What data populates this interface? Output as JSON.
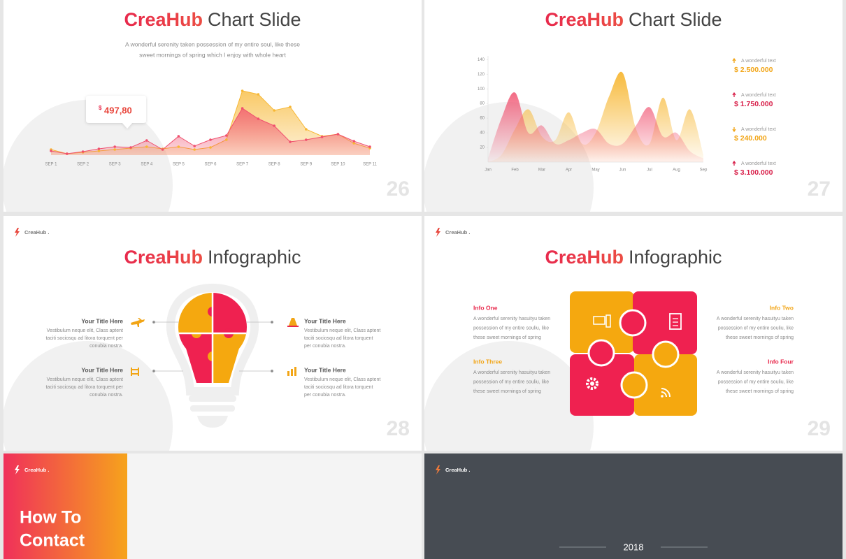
{
  "slides": [
    {
      "number": "26",
      "title": {
        "brand": "CreaHub",
        "rest": "Chart Slide"
      },
      "subtitle": [
        "A wonderful serenity  taken possession of my entire soul, like these",
        "sweet mornings of spring which I enjoy with whole heart"
      ],
      "callout": {
        "currency": "$",
        "amount": "497,80"
      },
      "chart_data": {
        "type": "line",
        "categories": [
          "SEP 1",
          null,
          "SEP 2",
          null,
          "SEP 3",
          null,
          "SEP 4",
          null,
          "SEP 5",
          null,
          "SEP 6",
          null,
          "SEP 7",
          null,
          "SEP 8",
          null,
          "SEP 9",
          null,
          "SEP 10",
          null,
          "SEP 11"
        ],
        "ylim": [
          0,
          100
        ],
        "series": [
          {
            "color": "#f7b733",
            "values": [
              8,
              2,
              4,
              6,
              8,
              10,
              12,
              9,
              12,
              8,
              11,
              22,
              92,
              87,
              64,
              69,
              37,
              27,
              30,
              17,
              10
            ]
          },
          {
            "color": "#f0506e",
            "values": [
              6,
              2,
              5,
              9,
              12,
              11,
              21,
              8,
              27,
              13,
              22,
              28,
              67,
              52,
              42,
              19,
              22,
              26,
              30,
              20,
              12
            ]
          }
        ]
      }
    },
    {
      "number": "27",
      "title": {
        "brand": "CreaHub",
        "rest": "Chart Slide"
      },
      "chart_data": {
        "type": "area",
        "categories": [
          "Jan",
          null,
          "Feb",
          null,
          "Mar",
          null,
          "Apr",
          null,
          "May",
          null,
          "Jun",
          null,
          "Jul",
          null,
          "Aug",
          null,
          "Sep"
        ],
        "ylim": [
          0,
          145
        ],
        "yticks": [
          20,
          40,
          60,
          80,
          100,
          120,
          140
        ],
        "series": [
          {
            "color": "#f7b733",
            "values": [
              0,
              10,
              45,
              72,
              35,
              30,
              68,
              25,
              40,
              90,
              122,
              45,
              25,
              88,
              30,
              72,
              10
            ]
          },
          {
            "color": "#f0506e",
            "values": [
              5,
              60,
              95,
              40,
              50,
              25,
              30,
              40,
              45,
              25,
              25,
              50,
              75,
              35,
              40,
              15,
              5
            ]
          }
        ]
      },
      "stats": [
        {
          "label": "A wonderful text",
          "amount": "$ 2.500.000",
          "trend": "up",
          "color": "#f2a516"
        },
        {
          "label": "A wonderful text",
          "amount": "$ 1.750.000",
          "trend": "up",
          "color": "#d8204a"
        },
        {
          "label": "A wonderful text",
          "amount": "$ 240.000",
          "trend": "down",
          "color": "#f2a516"
        },
        {
          "label": "A wonderful text",
          "amount": "$ 3.100.000",
          "trend": "up",
          "color": "#d8204a"
        }
      ]
    },
    {
      "number": "28",
      "logo": "CreaHub .",
      "title": {
        "brand": "CreaHub",
        "rest": "Infographic"
      },
      "items": [
        {
          "title": "Your Title Here",
          "text": [
            "Vestibulum neque elit, Class aptent",
            "taciti sociosqu ad litora torquent per",
            "conubia nostra."
          ]
        },
        {
          "title": "Your Title Here",
          "text": [
            "Vestibulum neque elit, Class aptent",
            "taciti sociosqu ad litora torquent",
            "per conubia nostra."
          ]
        },
        {
          "title": "Your Title Here",
          "text": [
            "Vestibulum neque elit, Class aptent",
            "taciti sociosqu ad litora torquent per",
            "conubia nostra."
          ]
        },
        {
          "title": "Your Title Here",
          "text": [
            "Vestibulum neque elit, Class aptent",
            "taciti sociosqu ad litora torquent",
            "per conubia nostra."
          ]
        }
      ]
    },
    {
      "number": "29",
      "logo": "CreaHub .",
      "title": {
        "brand": "CreaHub",
        "rest": "Infographic"
      },
      "items": [
        {
          "title": "Info One",
          "text": [
            "A wonderful serenity hasuityu taken",
            "possession of my entire souliu, like",
            "these sweet mornings of spring"
          ]
        },
        {
          "title": "Info Two",
          "text": [
            "A wonderful serenity hasuityu taken",
            "possession of my entire souliu, like",
            "these sweet mornings of spring"
          ]
        },
        {
          "title": "Info Three",
          "text": [
            "A wonderful serenity hasuityu taken",
            "possession of my entire souliu, like",
            "these sweet mornings of spring"
          ]
        },
        {
          "title": "Info Four",
          "text": [
            "A wonderful serenity hasuityu taken",
            "possession of my entire souliu, like",
            "these sweet mornings of spring"
          ]
        }
      ]
    },
    {
      "logo": "CreaHub .",
      "heading": [
        "How To",
        "Contact"
      ]
    },
    {
      "logo": "CreaHub .",
      "year": "2018"
    }
  ]
}
